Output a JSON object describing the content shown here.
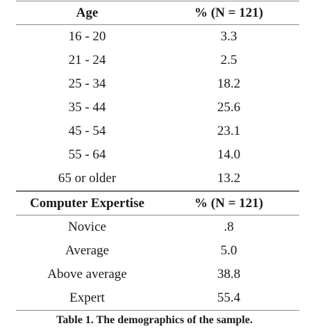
{
  "age_section": {
    "header": {
      "label": "Age",
      "value": "% (N = 121)"
    },
    "rows": [
      {
        "label": "16 - 20",
        "value": "3.3"
      },
      {
        "label": "21 - 24",
        "value": "2.5"
      },
      {
        "label": "25 - 34",
        "value": "18.2"
      },
      {
        "label": "35 - 44",
        "value": "25.6"
      },
      {
        "label": "45 - 54",
        "value": "23.1"
      },
      {
        "label": "55 - 64",
        "value": "14.0"
      },
      {
        "label": "65 or older",
        "value": "13.2"
      }
    ]
  },
  "expertise_section": {
    "header": {
      "label": "Computer Expertise",
      "value": "% (N = 121)"
    },
    "rows": [
      {
        "label": "Novice",
        "value": ".8"
      },
      {
        "label": "Average",
        "value": "5.0"
      },
      {
        "label": "Above average",
        "value": "38.8"
      },
      {
        "label": "Expert",
        "value": "55.4"
      }
    ]
  },
  "caption": "Table 1. The demographics of the sample."
}
